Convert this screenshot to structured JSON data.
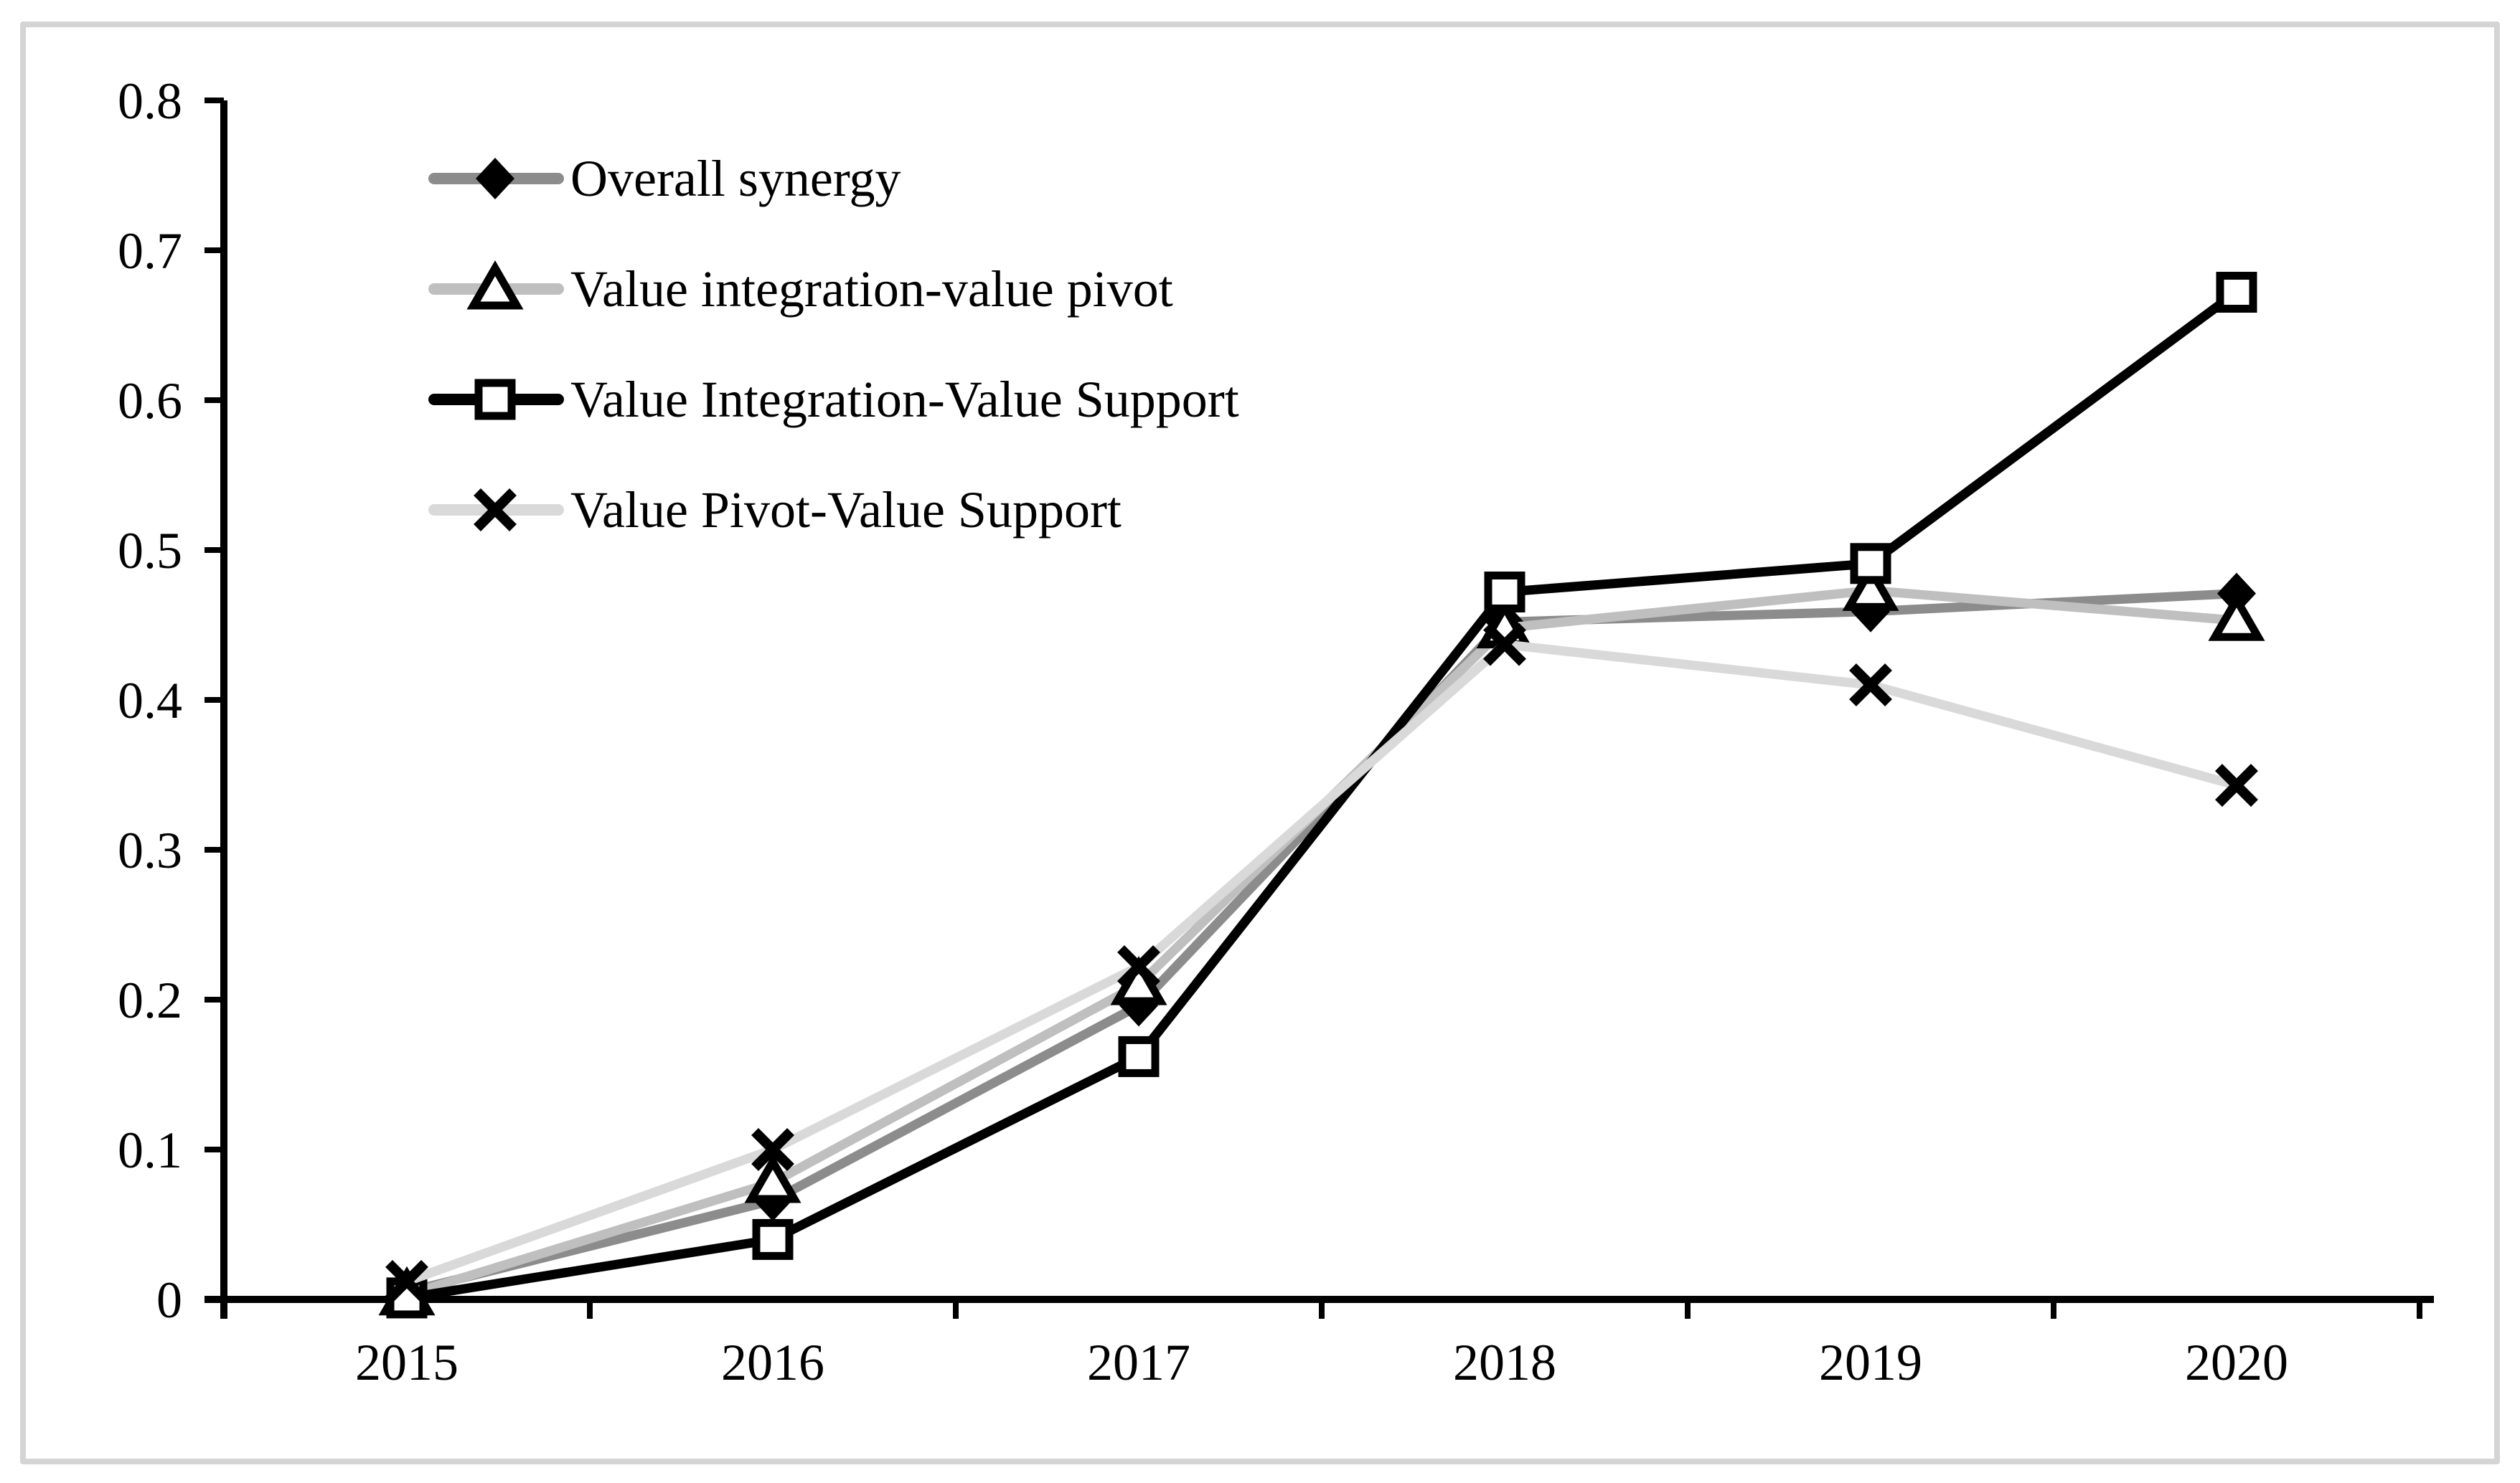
{
  "figure": {
    "background_color": "#ffffff",
    "border_color": "#d4d4d4"
  },
  "chart_data": {
    "type": "line",
    "title": "",
    "xlabel": "",
    "ylabel": "",
    "categories": [
      "2015",
      "2016",
      "2017",
      "2018",
      "2019",
      "2020"
    ],
    "y_axis": {
      "min": 0,
      "max": 0.8,
      "step": 0.1,
      "tick_labels": [
        "0",
        "0.1",
        "0.2",
        "0.3",
        "0.4",
        "0.5",
        "0.6",
        "0.7",
        "0.8"
      ]
    },
    "x_axis": {
      "tick_placement": "between-categories",
      "tick_labels": [
        "2015",
        "2016",
        "2017",
        "2018",
        "2019",
        "2020"
      ]
    },
    "grid": false,
    "legend_position": "top-left-inside",
    "axis_color": "#000000",
    "text_color": "#000000",
    "series": [
      {
        "name": "Overall synergy",
        "marker": "filled-diamond",
        "line_color": "#8c8c8c",
        "marker_color": "#000000",
        "values": [
          0.005,
          0.066,
          0.196,
          0.452,
          0.459,
          0.471
        ]
      },
      {
        "name": "Value integration-value pivot",
        "marker": "open-triangle",
        "line_color": "#bfbfbf",
        "marker_color": "#000000",
        "values": [
          0.003,
          0.078,
          0.21,
          0.448,
          0.473,
          0.453
        ]
      },
      {
        "name": "Value Integration-Value Support",
        "marker": "open-square",
        "line_color": "#000000",
        "marker_color": "#000000",
        "values": [
          0.001,
          0.04,
          0.162,
          0.472,
          0.491,
          0.672
        ]
      },
      {
        "name": "Value Pivot-Value Support",
        "marker": "x-cross",
        "line_color": "#d9d9d9",
        "marker_color": "#000000",
        "values": [
          0.012,
          0.1,
          0.222,
          0.437,
          0.41,
          0.343
        ]
      }
    ]
  }
}
